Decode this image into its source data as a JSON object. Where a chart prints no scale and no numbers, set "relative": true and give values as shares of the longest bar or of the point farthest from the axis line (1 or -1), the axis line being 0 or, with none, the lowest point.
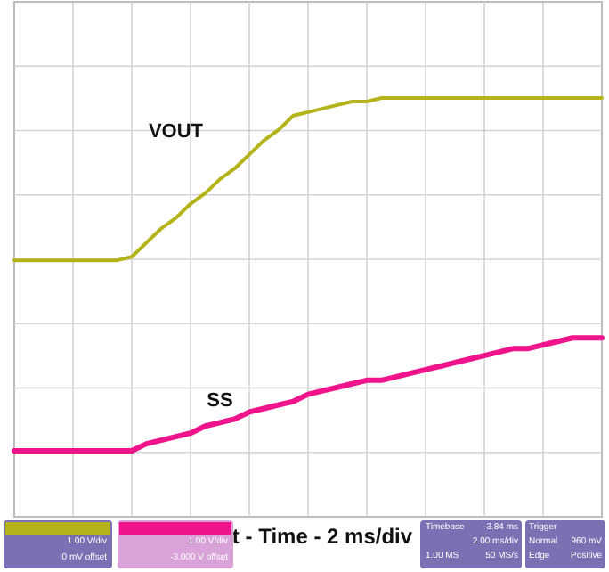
{
  "chart_data": {
    "type": "line",
    "relative": true,
    "grid": true,
    "xlabel": "t - Time - 2 ms/div",
    "categories": [
      null,
      null,
      null,
      null,
      null,
      null,
      null,
      null,
      null,
      null,
      null,
      null,
      null,
      null,
      null,
      null,
      null,
      null,
      null,
      null,
      null,
      null,
      null,
      null,
      null,
      null,
      null,
      null,
      null,
      null,
      null,
      null,
      null,
      null,
      null,
      null,
      null,
      null,
      null,
      null,
      null
    ],
    "series": [
      {
        "name": "VOUT",
        "color": "#b5b31a",
        "values": [
          0.54,
          0.54,
          0.54,
          0.54,
          0.54,
          0.54,
          0.54,
          0.54,
          0.55,
          0.59,
          0.63,
          0.66,
          0.7,
          0.73,
          0.77,
          0.8,
          0.84,
          0.88,
          0.91,
          0.95,
          0.96,
          0.97,
          0.98,
          0.99,
          0.99,
          1.0,
          1.0,
          1.0,
          1.0,
          1.0,
          1.0,
          1.0,
          1.0,
          1.0,
          1.0,
          1.0,
          1.0,
          1.0,
          1.0,
          1.0,
          1.0
        ]
      },
      {
        "name": "SS",
        "color": "#f0148c",
        "values": [
          0,
          0,
          0,
          0,
          0,
          0,
          0,
          0,
          0,
          0.02,
          0.03,
          0.04,
          0.05,
          0.07,
          0.08,
          0.09,
          0.11,
          0.12,
          0.13,
          0.14,
          0.16,
          0.17,
          0.18,
          0.19,
          0.2,
          0.2,
          0.21,
          0.22,
          0.23,
          0.24,
          0.25,
          0.26,
          0.27,
          0.28,
          0.29,
          0.29,
          0.3,
          0.31,
          0.32,
          0.32,
          0.32
        ]
      }
    ],
    "annotations": [
      "1.00 V/div",
      "0 mV offset",
      "1.00 V/div",
      "-3.000 V offset",
      "Timebase",
      "-3.84 ms",
      "2.00 ms/div",
      "1.00 MS",
      "50 MS/s",
      "Trigger",
      "Normal",
      "960 mV",
      "Edge",
      "Positive"
    ]
  }
}
